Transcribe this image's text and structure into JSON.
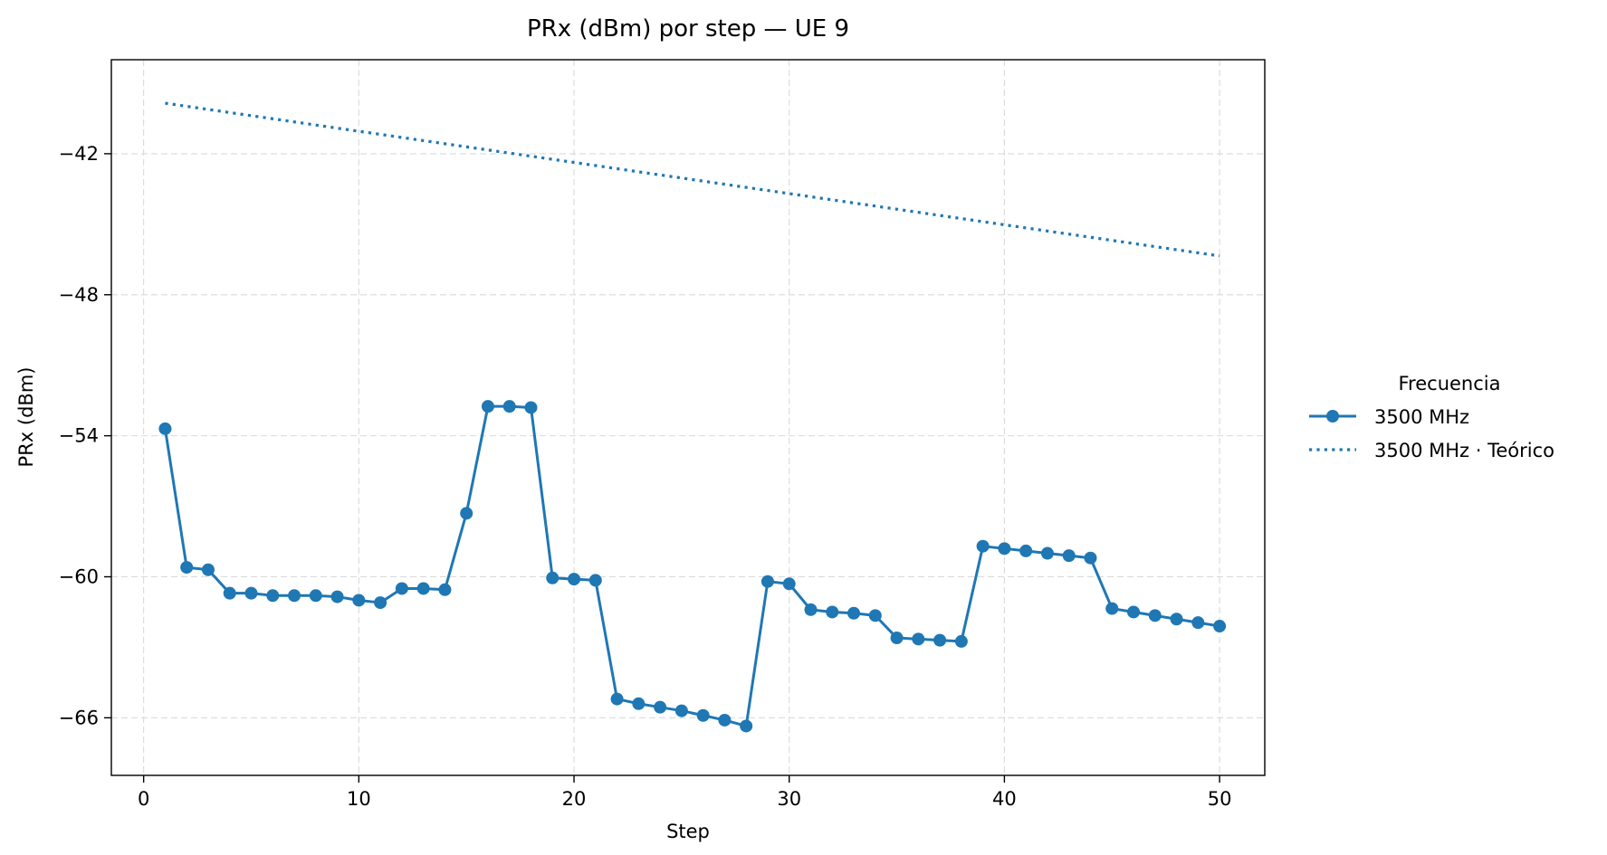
{
  "chart_data": {
    "type": "line",
    "title": "PRx (dBm) por step — UE 9",
    "xlabel": "Step",
    "ylabel": "PRx (dBm)",
    "xlim": [
      -1.5,
      52.1
    ],
    "ylim": [
      -68.45,
      -38.0
    ],
    "xticks": [
      0,
      10,
      20,
      30,
      40,
      50
    ],
    "xtick_labels": [
      "0",
      "10",
      "20",
      "30",
      "40",
      "50"
    ],
    "yticks": [
      -66,
      -60,
      -54,
      -48,
      -42
    ],
    "ytick_labels": [
      "−66",
      "−60",
      "−54",
      "−48",
      "−42"
    ],
    "grid": true,
    "legend": {
      "title": "Frecuencia",
      "placement": "outside-right",
      "entries": [
        "3500 MHz",
        "3500 MHz · Teórico"
      ]
    },
    "series": [
      {
        "name": "3500 MHz",
        "style": "solid-marker",
        "color": "#1f77b4",
        "x": [
          1,
          2,
          3,
          4,
          5,
          6,
          7,
          8,
          9,
          10,
          11,
          12,
          13,
          14,
          15,
          16,
          17,
          18,
          19,
          20,
          21,
          22,
          23,
          24,
          25,
          26,
          27,
          28,
          29,
          30,
          31,
          32,
          33,
          34,
          35,
          36,
          37,
          38,
          39,
          40,
          41,
          42,
          43,
          44,
          45,
          46,
          47,
          48,
          49,
          50
        ],
        "y": [
          -53.7,
          -59.6,
          -59.7,
          -60.7,
          -60.7,
          -60.8,
          -60.8,
          -60.8,
          -60.85,
          -61.0,
          -61.1,
          -60.5,
          -60.5,
          -60.55,
          -57.3,
          -52.75,
          -52.75,
          -52.8,
          -60.05,
          -60.1,
          -60.15,
          -65.2,
          -65.4,
          -65.55,
          -65.7,
          -65.9,
          -66.1,
          -66.35,
          -60.2,
          -60.3,
          -61.4,
          -61.5,
          -61.55,
          -61.65,
          -62.6,
          -62.65,
          -62.7,
          -62.75,
          -58.7,
          -58.8,
          -58.9,
          -59.0,
          -59.1,
          -59.2,
          -61.35,
          -61.5,
          -61.65,
          -61.8,
          -61.95,
          -62.1
        ]
      },
      {
        "name": "3500 MHz · Teórico",
        "style": "dotted",
        "color": "#1f77b4",
        "x": [
          1,
          50
        ],
        "y": [
          -39.85,
          -46.35
        ]
      }
    ]
  }
}
